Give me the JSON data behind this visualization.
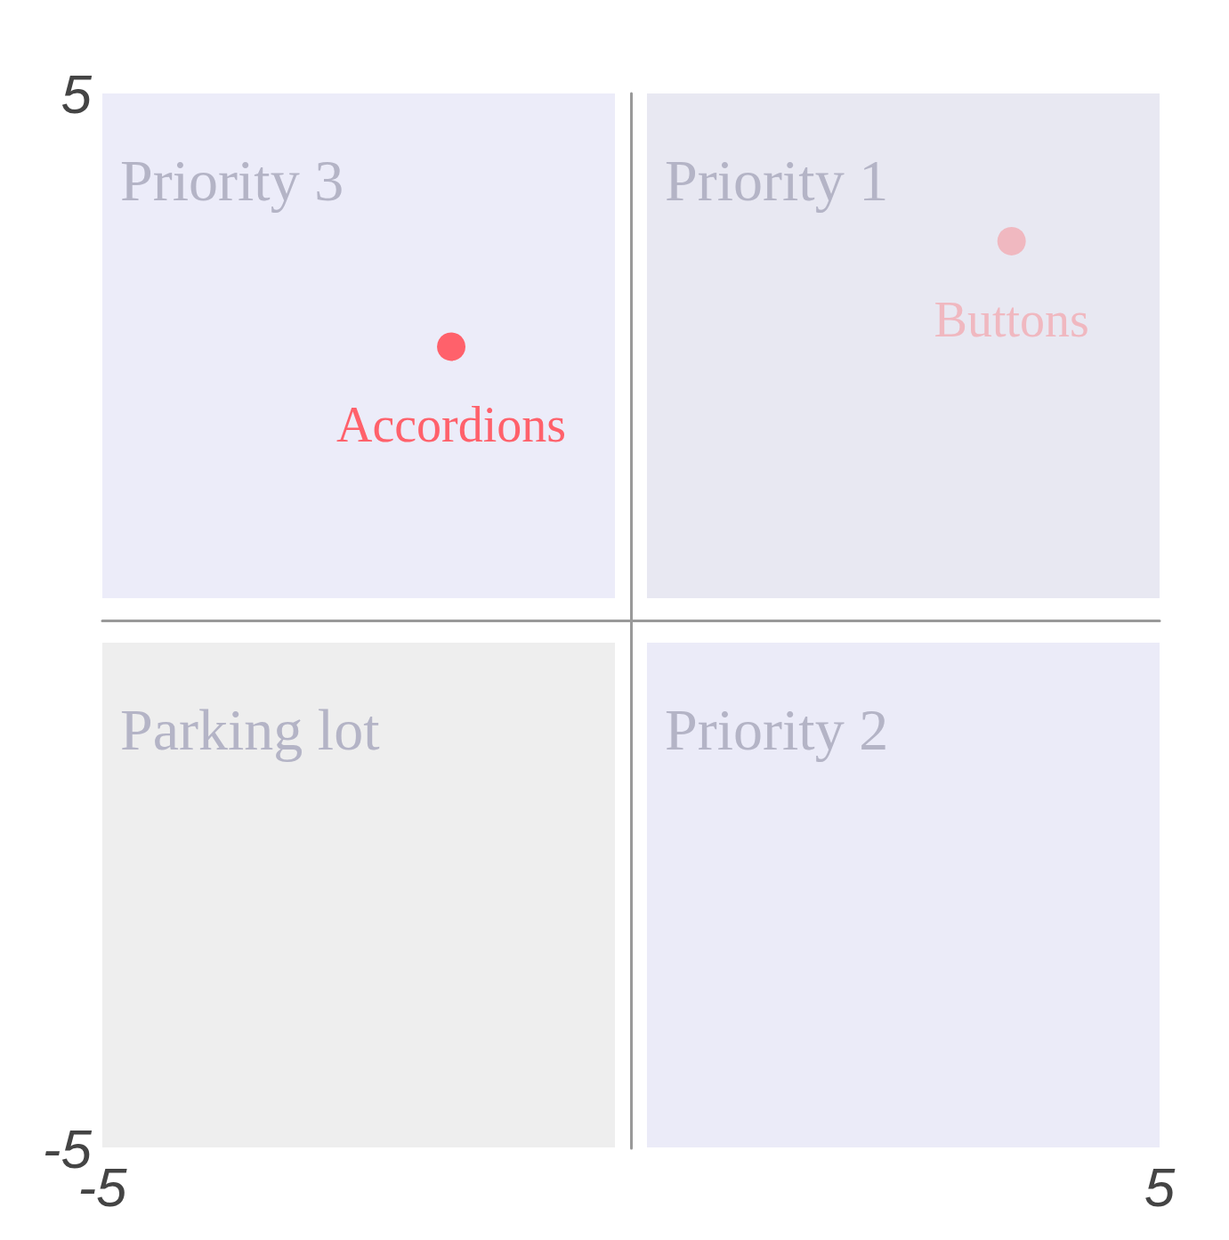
{
  "chart_data": {
    "type": "scatter",
    "xlim": [
      -5,
      5
    ],
    "ylim": [
      -5,
      5
    ],
    "xticks": [
      -5,
      5
    ],
    "yticks": [
      -5,
      5
    ],
    "grid": false,
    "marker": "circle",
    "series": [
      {
        "name": "Accordions",
        "color": "#ff616b",
        "x": [
          -1.7
        ],
        "values": [
          2.6
        ]
      },
      {
        "name": "Buttons",
        "color": "#f0b8c0",
        "x": [
          3.6
        ],
        "values": [
          3.6
        ]
      }
    ],
    "annotations": [
      "Priority 3",
      "Priority 1",
      "Parking lot",
      "Priority 2"
    ]
  }
}
